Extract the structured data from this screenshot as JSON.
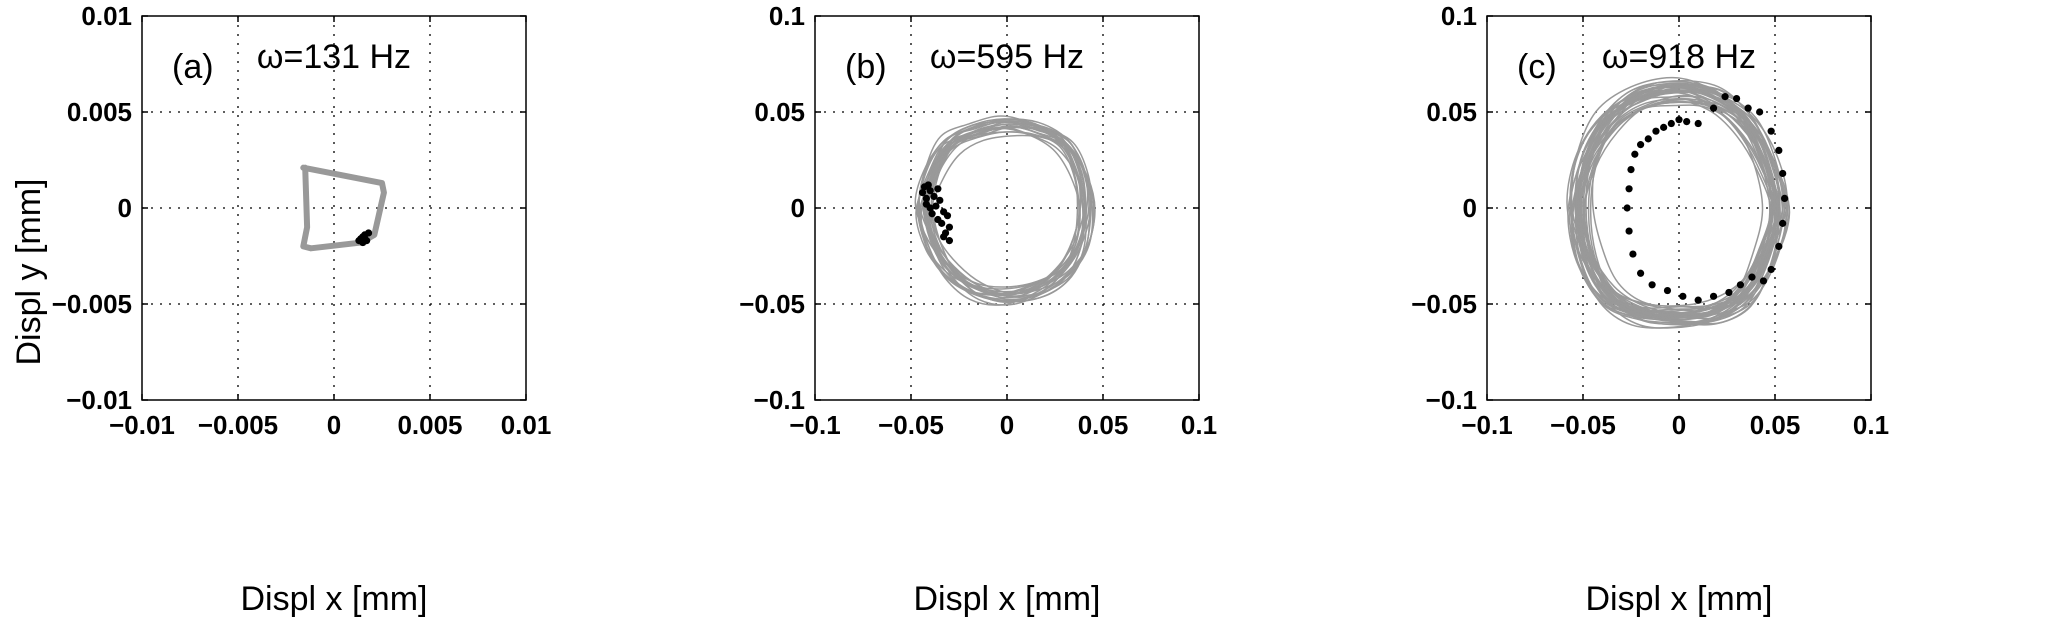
{
  "figure": {
    "shared_ylabel": "Displ y [mm]"
  },
  "colors": {
    "orbit": "#999999",
    "markers": "#000000",
    "background": "#ffffff"
  },
  "chart_data": [
    {
      "id": "a",
      "type": "line",
      "panel_label": "(a)",
      "title": "ω=131 Hz",
      "xlabel": "Displ x [mm]",
      "ylabel": "Displ y [mm]",
      "xlim": [
        -0.01,
        0.01
      ],
      "ylim": [
        -0.01,
        0.01
      ],
      "xticks": [
        -0.01,
        -0.005,
        0,
        0.005,
        0.01
      ],
      "yticks": [
        -0.01,
        -0.005,
        0,
        0.005,
        0.01
      ],
      "xtick_labels": [
        "−0.01",
        "−0.005",
        "0",
        "0.005",
        "0.01"
      ],
      "ytick_labels": [
        "−0.01",
        "−0.005",
        "0",
        "0.005",
        "0.01"
      ],
      "grid": true,
      "series": [
        {
          "kind": "orbit",
          "x": [
            -0.0016,
            0.0025,
            0.0026,
            0.0021,
            0.0014,
            -0.0012,
            -0.0016,
            -0.0014,
            -0.0015
          ],
          "y": [
            0.0021,
            0.0013,
            0.0008,
            -0.0014,
            -0.0018,
            -0.0021,
            -0.002,
            -0.001,
            0.0021
          ]
        },
        {
          "kind": "markers",
          "x": [
            0.0014,
            0.0015,
            0.0016,
            0.0017,
            0.0015,
            0.0016,
            0.0013,
            0.0018
          ],
          "y": [
            -0.0016,
            -0.0015,
            -0.0014,
            -0.0017,
            -0.0018,
            -0.0016,
            -0.0017,
            -0.0013
          ]
        }
      ]
    },
    {
      "id": "b",
      "type": "line",
      "panel_label": "(b)",
      "title": "ω=595 Hz",
      "xlabel": "Displ x [mm]",
      "ylabel": "",
      "xlim": [
        -0.1,
        0.1
      ],
      "ylim": [
        -0.1,
        0.1
      ],
      "xticks": [
        -0.1,
        -0.05,
        0,
        0.05,
        0.1
      ],
      "yticks": [
        -0.1,
        -0.05,
        0,
        0.05,
        0.1
      ],
      "xtick_labels": [
        "−0.1",
        "−0.05",
        "0",
        "0.05",
        "0.1"
      ],
      "ytick_labels": [
        "−0.1",
        "−0.05",
        "0",
        "0.05",
        "0.1"
      ],
      "grid": true,
      "series": [
        {
          "kind": "orbit",
          "x": [
            0.0,
            0.0163,
            0.0306,
            0.0396,
            0.0425,
            0.0394,
            0.0303,
            0.0167,
            0.0,
            -0.0161,
            -0.0299,
            -0.0393,
            -0.0445,
            -0.0396,
            -0.0306,
            -0.0165
          ],
          "y": [
            0.0445,
            0.0418,
            0.0343,
            0.0181,
            0.0,
            -0.0194,
            -0.0343,
            -0.0437,
            -0.0475,
            -0.0441,
            -0.0343,
            -0.0197,
            0.0,
            0.0191,
            0.0343,
            0.041
          ]
        },
        {
          "kind": "markers",
          "x": [
            -0.043,
            -0.041,
            -0.04,
            -0.042,
            -0.038,
            -0.036,
            -0.035,
            -0.037,
            -0.033,
            -0.031,
            -0.03,
            -0.032,
            -0.034,
            -0.039,
            -0.042,
            -0.044,
            -0.04,
            -0.036,
            -0.033,
            -0.03
          ],
          "y": [
            0.011,
            0.012,
            0.009,
            0.005,
            0.006,
            0.01,
            0.004,
            0.001,
            -0.002,
            -0.004,
            -0.01,
            -0.013,
            -0.008,
            -0.003,
            0.002,
            0.008,
            0.0,
            -0.006,
            -0.015,
            -0.017
          ]
        }
      ]
    },
    {
      "id": "c",
      "type": "line",
      "panel_label": "(c)",
      "title": "ω=918 Hz",
      "xlabel": "Displ x [mm]",
      "ylabel": "",
      "xlim": [
        -0.1,
        0.1
      ],
      "ylim": [
        -0.1,
        0.1
      ],
      "xticks": [
        -0.1,
        -0.05,
        0,
        0.05,
        0.1
      ],
      "yticks": [
        -0.1,
        -0.05,
        0,
        0.05,
        0.1
      ],
      "xtick_labels": [
        "−0.1",
        "−0.05",
        "0",
        "0.05",
        "0.1"
      ],
      "ytick_labels": [
        "−0.1",
        "−0.05",
        "0",
        "0.05",
        "0.1"
      ],
      "grid": true,
      "series": [
        {
          "kind": "orbit",
          "x": [
            0.0,
            0.0195,
            0.036,
            0.0475,
            0.054,
            0.0475,
            0.036,
            0.0195,
            0.0,
            -0.0215,
            -0.039,
            -0.0505,
            -0.055,
            -0.0505,
            -0.039,
            -0.0215
          ],
          "y": [
            0.064,
            0.06,
            0.047,
            0.026,
            0.0,
            -0.026,
            -0.047,
            -0.057,
            -0.059,
            -0.057,
            -0.047,
            -0.026,
            0.0,
            0.026,
            0.047,
            0.06
          ]
        },
        {
          "kind": "markers",
          "x": [
            0.01,
            0.018,
            0.024,
            0.03,
            0.036,
            0.042,
            0.048,
            0.052,
            0.054,
            0.055,
            0.054,
            0.052,
            0.048,
            0.044,
            0.038,
            0.032,
            0.026,
            0.018,
            0.01,
            0.002,
            -0.006,
            -0.014,
            -0.02,
            -0.024,
            -0.026,
            -0.027,
            -0.026,
            -0.025,
            -0.023,
            -0.02,
            -0.016,
            -0.012,
            -0.008,
            -0.004,
            0.0,
            0.004
          ],
          "y": [
            0.044,
            0.052,
            0.058,
            0.057,
            0.052,
            0.05,
            0.04,
            0.03,
            0.018,
            0.005,
            -0.008,
            -0.02,
            -0.032,
            -0.038,
            -0.036,
            -0.04,
            -0.044,
            -0.046,
            -0.048,
            -0.046,
            -0.043,
            -0.04,
            -0.034,
            -0.024,
            -0.012,
            0.0,
            0.01,
            0.02,
            0.028,
            0.033,
            0.036,
            0.04,
            0.042,
            0.044,
            0.046,
            0.045
          ]
        }
      ]
    }
  ]
}
